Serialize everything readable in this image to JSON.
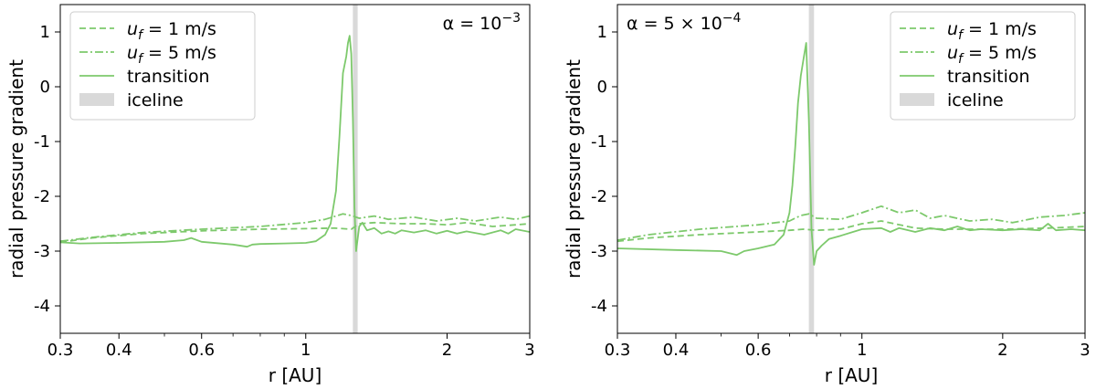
{
  "colors": {
    "series": "#7dc96c",
    "iceline": "#d9d9d9",
    "axis": "#000000"
  },
  "chart_data": [
    {
      "type": "line",
      "annotation": {
        "prefix": "α = 10",
        "exp": "−3"
      },
      "xlabel": "r [AU]",
      "ylabel": "radial pressure gradient",
      "xscale": "log",
      "xlim": [
        0.3,
        3
      ],
      "ylim": [
        -4.5,
        1.5
      ],
      "xticks": [
        {
          "v": 0.3,
          "label": "0.3"
        },
        {
          "v": 0.4,
          "label": "0.4"
        },
        {
          "v": 0.6,
          "label": "0.6"
        },
        {
          "v": 1,
          "label": "1"
        },
        {
          "v": 2,
          "label": "2"
        },
        {
          "v": 3,
          "label": "3"
        }
      ],
      "yticks": [
        {
          "v": 1,
          "label": "1"
        },
        {
          "v": 0,
          "label": "0"
        },
        {
          "v": -1,
          "label": "-1"
        },
        {
          "v": -2,
          "label": "-2"
        },
        {
          "v": -3,
          "label": "-3"
        },
        {
          "v": -4,
          "label": "-4"
        }
      ],
      "legend_position": "top-left",
      "legend": [
        {
          "label_var": "u",
          "label_sub": "f",
          "label_rest": " = 1 m/s",
          "style": "dashed"
        },
        {
          "label_var": "u",
          "label_sub": "f",
          "label_rest": " = 5 m/s",
          "style": "dashdot"
        },
        {
          "label": "transition",
          "style": "solid"
        },
        {
          "label": "iceline",
          "style": "band"
        }
      ],
      "iceline": [
        1.26,
        1.29
      ],
      "series": [
        {
          "style": "dashed",
          "x": [
            0.3,
            0.35,
            0.45,
            0.6,
            0.8,
            1.0,
            1.15,
            1.25,
            1.3,
            1.4,
            1.6,
            1.8,
            2.0,
            2.2,
            2.5,
            2.8,
            3.0
          ],
          "y": [
            -2.84,
            -2.76,
            -2.68,
            -2.63,
            -2.6,
            -2.59,
            -2.58,
            -2.6,
            -2.5,
            -2.48,
            -2.5,
            -2.5,
            -2.52,
            -2.48,
            -2.55,
            -2.52,
            -2.5
          ]
        },
        {
          "style": "dashdot",
          "x": [
            0.3,
            0.35,
            0.45,
            0.6,
            0.8,
            1.0,
            1.1,
            1.2,
            1.25,
            1.3,
            1.4,
            1.5,
            1.7,
            1.9,
            2.1,
            2.3,
            2.6,
            2.8,
            3.0
          ],
          "y": [
            -2.82,
            -2.75,
            -2.66,
            -2.6,
            -2.55,
            -2.48,
            -2.42,
            -2.32,
            -2.35,
            -2.4,
            -2.36,
            -2.42,
            -2.38,
            -2.45,
            -2.4,
            -2.45,
            -2.38,
            -2.42,
            -2.36
          ]
        },
        {
          "style": "solid",
          "x": [
            0.3,
            0.33,
            0.4,
            0.5,
            0.55,
            0.57,
            0.6,
            0.7,
            0.75,
            0.77,
            0.8,
            0.9,
            1.0,
            1.05,
            1.1,
            1.13,
            1.16,
            1.18,
            1.2,
            1.22,
            1.23,
            1.24,
            1.25,
            1.26,
            1.27,
            1.28,
            1.3,
            1.32,
            1.35,
            1.4,
            1.45,
            1.5,
            1.55,
            1.6,
            1.7,
            1.8,
            1.9,
            2.0,
            2.1,
            2.2,
            2.4,
            2.6,
            2.7,
            2.8,
            3.0
          ],
          "y": [
            -2.84,
            -2.86,
            -2.85,
            -2.83,
            -2.8,
            -2.76,
            -2.83,
            -2.88,
            -2.92,
            -2.88,
            -2.87,
            -2.86,
            -2.85,
            -2.82,
            -2.7,
            -2.5,
            -1.9,
            -0.9,
            0.25,
            0.55,
            0.8,
            0.93,
            0.6,
            -0.6,
            -2.2,
            -3.0,
            -2.55,
            -2.48,
            -2.62,
            -2.58,
            -2.68,
            -2.64,
            -2.68,
            -2.62,
            -2.66,
            -2.62,
            -2.68,
            -2.63,
            -2.68,
            -2.64,
            -2.7,
            -2.62,
            -2.68,
            -2.6,
            -2.65
          ]
        }
      ]
    },
    {
      "type": "line",
      "annotation": {
        "prefix": "α = 5 × 10",
        "exp": "−4"
      },
      "xlabel": "r [AU]",
      "ylabel": "radial pressure gradient",
      "xscale": "log",
      "xlim": [
        0.3,
        3
      ],
      "ylim": [
        -4.5,
        1.5
      ],
      "xticks": [
        {
          "v": 0.3,
          "label": "0.3"
        },
        {
          "v": 0.4,
          "label": "0.4"
        },
        {
          "v": 0.6,
          "label": "0.6"
        },
        {
          "v": 1,
          "label": "1"
        },
        {
          "v": 2,
          "label": "2"
        },
        {
          "v": 3,
          "label": "3"
        }
      ],
      "yticks": [
        {
          "v": 1,
          "label": "1"
        },
        {
          "v": 0,
          "label": "0"
        },
        {
          "v": -1,
          "label": "-1"
        },
        {
          "v": -2,
          "label": "-2"
        },
        {
          "v": -3,
          "label": "-3"
        },
        {
          "v": -4,
          "label": "-4"
        }
      ],
      "legend_position": "top-right",
      "legend": [
        {
          "label_var": "u",
          "label_sub": "f",
          "label_rest": " = 1 m/s",
          "style": "dashed"
        },
        {
          "label_var": "u",
          "label_sub": "f",
          "label_rest": " = 5 m/s",
          "style": "dashdot"
        },
        {
          "label": "transition",
          "style": "solid"
        },
        {
          "label": "iceline",
          "style": "band"
        }
      ],
      "iceline": [
        0.77,
        0.79
      ],
      "series": [
        {
          "style": "dashed",
          "x": [
            0.3,
            0.35,
            0.45,
            0.6,
            0.7,
            0.75,
            0.8,
            0.9,
            1.0,
            1.1,
            1.3,
            1.5,
            1.8,
            2.0,
            2.5,
            3.0
          ],
          "y": [
            -2.82,
            -2.76,
            -2.7,
            -2.65,
            -2.62,
            -2.6,
            -2.62,
            -2.6,
            -2.5,
            -2.45,
            -2.58,
            -2.6,
            -2.6,
            -2.6,
            -2.58,
            -2.55
          ]
        },
        {
          "style": "dashdot",
          "x": [
            0.3,
            0.35,
            0.45,
            0.6,
            0.7,
            0.74,
            0.77,
            0.8,
            0.9,
            1.0,
            1.1,
            1.2,
            1.3,
            1.4,
            1.5,
            1.7,
            1.9,
            2.1,
            2.4,
            2.7,
            3.0
          ],
          "y": [
            -2.8,
            -2.7,
            -2.6,
            -2.52,
            -2.45,
            -2.35,
            -2.32,
            -2.4,
            -2.42,
            -2.3,
            -2.18,
            -2.3,
            -2.25,
            -2.4,
            -2.35,
            -2.45,
            -2.42,
            -2.48,
            -2.38,
            -2.35,
            -2.3
          ]
        },
        {
          "style": "solid",
          "x": [
            0.3,
            0.4,
            0.5,
            0.54,
            0.56,
            0.6,
            0.65,
            0.68,
            0.7,
            0.71,
            0.72,
            0.73,
            0.74,
            0.75,
            0.76,
            0.77,
            0.78,
            0.79,
            0.8,
            0.82,
            0.85,
            0.9,
            1.0,
            1.1,
            1.15,
            1.2,
            1.3,
            1.4,
            1.5,
            1.6,
            1.7,
            1.8,
            2.0,
            2.2,
            2.4,
            2.5,
            2.6,
            2.8,
            3.0
          ],
          "y": [
            -2.95,
            -2.98,
            -3.0,
            -3.07,
            -3.0,
            -2.95,
            -2.88,
            -2.7,
            -2.3,
            -1.8,
            -1.1,
            -0.3,
            0.2,
            0.5,
            0.8,
            -0.6,
            -2.6,
            -3.25,
            -3.0,
            -2.9,
            -2.78,
            -2.72,
            -2.6,
            -2.58,
            -2.65,
            -2.58,
            -2.65,
            -2.58,
            -2.62,
            -2.55,
            -2.62,
            -2.6,
            -2.62,
            -2.6,
            -2.62,
            -2.5,
            -2.62,
            -2.6,
            -2.62
          ]
        }
      ]
    }
  ]
}
